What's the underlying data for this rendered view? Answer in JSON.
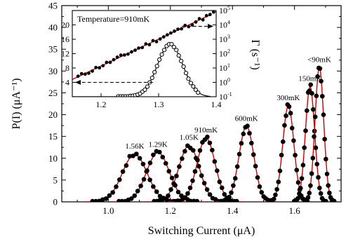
{
  "chart_data": {
    "main": {
      "type": "scatter",
      "xlabel": "Switching Current (μA)",
      "ylabel": "P(I) (μA⁻¹)",
      "xlim": [
        0.85,
        1.75
      ],
      "ylim": [
        0,
        45
      ],
      "xticks": [
        "1.0",
        "1.2",
        "1.4",
        "1.6"
      ],
      "yticks": [
        "0",
        "5",
        "10",
        "15",
        "20",
        "25",
        "30",
        "35",
        "40",
        "45"
      ],
      "colors": {
        "marker": "#000000",
        "fit": "#cc0000"
      },
      "series": [
        {
          "label": "1.56K",
          "peak_x": 1.085,
          "peak_y": 10.9,
          "width": 0.04
        },
        {
          "label": "1.29K",
          "peak_x": 1.16,
          "peak_y": 11.3,
          "width": 0.037
        },
        {
          "label": "1.05K",
          "peak_x": 1.26,
          "peak_y": 12.9,
          "width": 0.033
        },
        {
          "label": "910mK",
          "peak_x": 1.315,
          "peak_y": 14.6,
          "width": 0.029
        },
        {
          "label": "600mK",
          "peak_x": 1.445,
          "peak_y": 17.3,
          "width": 0.024
        },
        {
          "label": "300mK",
          "peak_x": 1.58,
          "peak_y": 22.0,
          "width": 0.018
        },
        {
          "label": "150mK",
          "peak_x": 1.65,
          "peak_y": 26.4,
          "width": 0.015
        },
        {
          "label": "<90mK",
          "peak_x": 1.68,
          "peak_y": 30.8,
          "width": 0.014
        }
      ]
    },
    "inset": {
      "type": "scatter",
      "annotation": "Temperature=910mK",
      "xlim": [
        1.15,
        1.4
      ],
      "xticks": [
        "1.2",
        "1.3",
        "1.4"
      ],
      "ylim_left": [
        0,
        24
      ],
      "yticks_left": [
        "4",
        "8",
        "12",
        "16",
        "20"
      ],
      "ylim_right_log10": [
        -1,
        5
      ],
      "yticks_right": [
        {
          "base": "10",
          "exp": "-1"
        },
        {
          "base": "10",
          "exp": "0"
        },
        {
          "base": "10",
          "exp": "1"
        },
        {
          "base": "10",
          "exp": "2"
        },
        {
          "base": "10",
          "exp": "3"
        },
        {
          "base": "10",
          "exp": "4"
        },
        {
          "base": "10",
          "exp": "5"
        }
      ],
      "ylabel_right": "Γ (s⁻¹)",
      "distribution": {
        "peak_x": 1.32,
        "peak_y": 14.6,
        "width": 0.022
      },
      "rate_line": {
        "x": [
          1.15,
          1.39
        ],
        "log10_rate": [
          0.2,
          4.7
        ]
      }
    }
  }
}
